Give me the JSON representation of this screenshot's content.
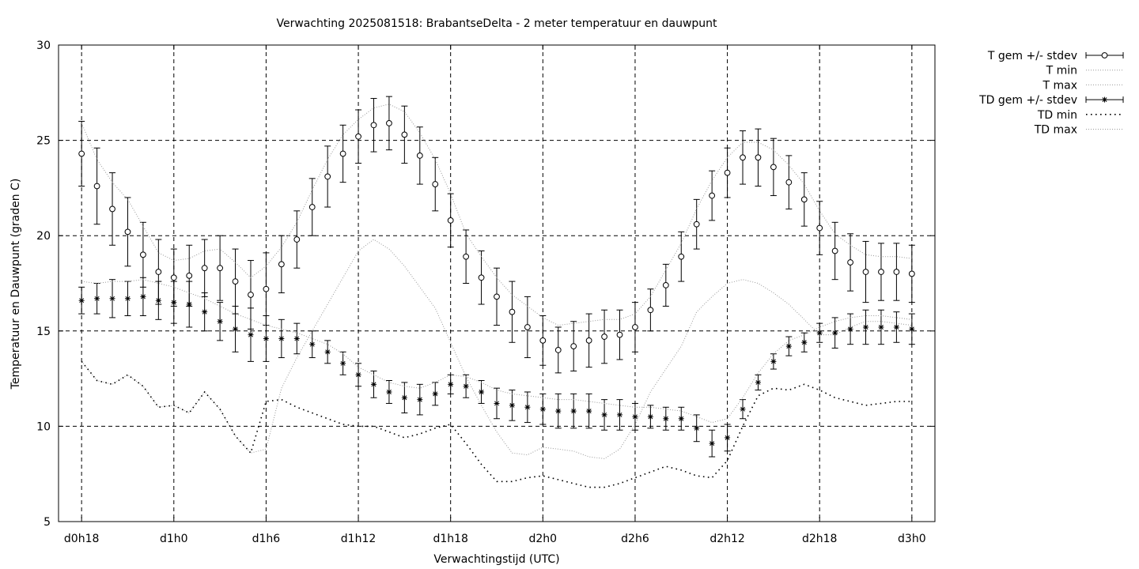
{
  "chart_data": {
    "type": "line",
    "title": "Verwachting 2025081518: BrabantseDelta - 2 meter temperatuur en dauwpunt",
    "xlabel": "Verwachtingstijd (UTC)",
    "ylabel": "Temperatuur en Dauwpunt (graden C)",
    "ylim": [
      5,
      30
    ],
    "yticks": [
      5,
      10,
      15,
      20,
      25,
      30
    ],
    "xlim": [
      -1.5,
      55.5
    ],
    "xticks": [
      {
        "x": 0,
        "label": "d0h18"
      },
      {
        "x": 6,
        "label": "d1h0"
      },
      {
        "x": 12,
        "label": "d1h6"
      },
      {
        "x": 18,
        "label": "d1h12"
      },
      {
        "x": 24,
        "label": "d1h18"
      },
      {
        "x": 30,
        "label": "d2h0"
      },
      {
        "x": 36,
        "label": "d2h6"
      },
      {
        "x": 42,
        "label": "d2h12"
      },
      {
        "x": 48,
        "label": "d2h18"
      },
      {
        "x": 54,
        "label": "d3h0"
      }
    ],
    "grid": true,
    "legend_position": "outside-top-right",
    "series": [
      {
        "name": "T gem +/- stdev",
        "style": "errorbars-circle",
        "x": [
          0,
          1,
          2,
          3,
          4,
          5,
          6,
          7,
          8,
          9,
          10,
          11,
          12,
          13,
          14,
          15,
          16,
          17,
          18,
          19,
          20,
          21,
          22,
          23,
          24,
          25,
          26,
          27,
          28,
          29,
          30,
          31,
          32,
          33,
          34,
          35,
          36,
          37,
          38,
          39,
          40,
          41,
          42,
          43,
          44,
          45,
          46,
          47,
          48,
          49,
          50,
          51,
          52,
          53,
          54
        ],
        "y": [
          24.3,
          22.6,
          21.4,
          20.2,
          19.0,
          18.1,
          17.8,
          17.9,
          18.3,
          18.3,
          17.6,
          16.9,
          17.2,
          18.5,
          19.8,
          21.5,
          23.1,
          24.3,
          25.2,
          25.8,
          25.9,
          25.3,
          24.2,
          22.7,
          20.8,
          18.9,
          17.8,
          16.8,
          16.0,
          15.2,
          14.5,
          14.0,
          14.2,
          14.5,
          14.7,
          14.8,
          15.2,
          16.1,
          17.4,
          18.9,
          20.6,
          22.1,
          23.3,
          24.1,
          24.1,
          23.6,
          22.8,
          21.9,
          20.4,
          19.2,
          18.6,
          18.1,
          18.1,
          18.1,
          18.0
        ],
        "stdev": [
          1.7,
          2.0,
          1.9,
          1.8,
          1.7,
          1.7,
          1.5,
          1.6,
          1.5,
          1.7,
          1.7,
          1.8,
          1.9,
          1.5,
          1.5,
          1.5,
          1.6,
          1.5,
          1.4,
          1.4,
          1.4,
          1.5,
          1.5,
          1.4,
          1.4,
          1.4,
          1.4,
          1.5,
          1.6,
          1.6,
          1.3,
          1.2,
          1.3,
          1.4,
          1.4,
          1.3,
          1.3,
          1.1,
          1.1,
          1.3,
          1.3,
          1.3,
          1.3,
          1.4,
          1.5,
          1.5,
          1.4,
          1.4,
          1.4,
          1.5,
          1.5,
          1.6,
          1.5,
          1.5,
          1.5
        ]
      },
      {
        "name": "T min",
        "style": "dotted-fine",
        "x": [
          0,
          1,
          2,
          3,
          4,
          5,
          6,
          7,
          8,
          9,
          10,
          11,
          12,
          13,
          14,
          15,
          16,
          17,
          18,
          19,
          20,
          21,
          22,
          23,
          24,
          25,
          26,
          27,
          28,
          29,
          30,
          31,
          32,
          33,
          34,
          35,
          36,
          37,
          38,
          39,
          40,
          41,
          42,
          43,
          44,
          45,
          46,
          47,
          48,
          49,
          50,
          51,
          52,
          53,
          54
        ],
        "y": [
          13.4,
          12.4,
          12.2,
          12.7,
          12.1,
          11.0,
          11.1,
          10.7,
          11.8,
          10.9,
          9.5,
          8.6,
          8.8,
          12.0,
          13.6,
          15.0,
          16.4,
          17.8,
          19.2,
          19.8,
          19.3,
          18.4,
          17.3,
          16.2,
          14.4,
          12.6,
          11.1,
          9.7,
          8.6,
          8.5,
          8.9,
          8.8,
          8.7,
          8.4,
          8.3,
          8.8,
          10.1,
          11.8,
          13.0,
          14.2,
          16.0,
          16.8,
          17.5,
          17.7,
          17.5,
          17.0,
          16.4,
          15.6,
          14.8,
          14.8,
          15.2,
          15.5,
          15.5,
          15.4,
          15.3
        ]
      },
      {
        "name": "T max",
        "style": "dotted-fine",
        "x": [
          0,
          1,
          2,
          3,
          4,
          5,
          6,
          7,
          8,
          9,
          10,
          11,
          12,
          13,
          14,
          15,
          16,
          17,
          18,
          19,
          20,
          21,
          22,
          23,
          24,
          25,
          26,
          27,
          28,
          29,
          30,
          31,
          32,
          33,
          34,
          35,
          36,
          37,
          38,
          39,
          40,
          41,
          42,
          43,
          44,
          45,
          46,
          47,
          48,
          49,
          50,
          51,
          52,
          53,
          54
        ],
        "y": [
          25.9,
          24.0,
          22.8,
          21.9,
          20.5,
          19.1,
          18.7,
          18.8,
          19.2,
          19.3,
          18.6,
          17.8,
          18.4,
          19.4,
          20.7,
          22.4,
          24.0,
          25.3,
          26.1,
          26.7,
          26.9,
          26.5,
          25.4,
          24.0,
          22.2,
          20.1,
          18.9,
          17.8,
          16.9,
          16.3,
          15.7,
          15.3,
          15.4,
          15.5,
          15.6,
          15.6,
          15.9,
          16.8,
          18.2,
          19.6,
          21.4,
          22.9,
          24.1,
          24.9,
          24.9,
          24.5,
          23.7,
          22.7,
          21.3,
          20.1,
          19.5,
          19.0,
          18.9,
          18.9,
          18.8
        ]
      },
      {
        "name": "TD gem +/- stdev",
        "style": "errorbars-star",
        "x": [
          0,
          1,
          2,
          3,
          4,
          5,
          6,
          7,
          8,
          9,
          10,
          11,
          12,
          13,
          14,
          15,
          16,
          17,
          18,
          19,
          20,
          21,
          22,
          23,
          24,
          25,
          26,
          27,
          28,
          29,
          30,
          31,
          32,
          33,
          34,
          35,
          36,
          37,
          38,
          39,
          40,
          41,
          42,
          43,
          44,
          45,
          46,
          47,
          48,
          49,
          50,
          51,
          52,
          53,
          54
        ],
        "y": [
          16.6,
          16.7,
          16.7,
          16.7,
          16.8,
          16.6,
          16.5,
          16.4,
          16.0,
          15.5,
          15.1,
          14.8,
          14.6,
          14.6,
          14.6,
          14.3,
          13.9,
          13.3,
          12.7,
          12.2,
          11.8,
          11.5,
          11.4,
          11.7,
          12.2,
          12.1,
          11.8,
          11.2,
          11.1,
          11.0,
          10.9,
          10.8,
          10.8,
          10.8,
          10.6,
          10.6,
          10.5,
          10.5,
          10.4,
          10.4,
          9.9,
          9.1,
          9.4,
          10.9,
          12.3,
          13.4,
          14.2,
          14.4,
          14.9,
          14.9,
          15.1,
          15.2,
          15.2,
          15.2,
          15.1
        ],
        "stdev": [
          0.7,
          0.8,
          1.0,
          0.9,
          1.0,
          1.0,
          1.1,
          1.2,
          1.0,
          1.0,
          1.2,
          1.4,
          1.2,
          1.0,
          0.8,
          0.7,
          0.6,
          0.6,
          0.6,
          0.7,
          0.6,
          0.8,
          0.8,
          0.6,
          0.5,
          0.6,
          0.6,
          0.8,
          0.8,
          0.8,
          0.8,
          0.9,
          0.9,
          0.9,
          0.8,
          0.8,
          0.7,
          0.6,
          0.6,
          0.6,
          0.7,
          0.7,
          0.7,
          0.5,
          0.4,
          0.4,
          0.5,
          0.5,
          0.5,
          0.8,
          0.8,
          0.9,
          0.9,
          0.8,
          0.8
        ]
      },
      {
        "name": "TD min",
        "style": "dotted-coarse",
        "x": [
          0,
          1,
          2,
          3,
          4,
          5,
          6,
          7,
          8,
          9,
          10,
          11,
          12,
          13,
          14,
          15,
          16,
          17,
          18,
          19,
          20,
          21,
          22,
          23,
          24,
          25,
          26,
          27,
          28,
          29,
          30,
          31,
          32,
          33,
          34,
          35,
          36,
          37,
          38,
          39,
          40,
          41,
          42,
          43,
          44,
          45,
          46,
          47,
          48,
          49,
          50,
          51,
          52,
          53,
          54
        ],
        "y": [
          13.4,
          12.4,
          12.2,
          12.7,
          12.1,
          11.0,
          11.1,
          10.7,
          11.8,
          10.9,
          9.5,
          8.6,
          11.3,
          11.4,
          11.0,
          10.7,
          10.4,
          10.1,
          10.0,
          10.0,
          9.7,
          9.4,
          9.6,
          9.9,
          10.1,
          9.1,
          8.0,
          7.1,
          7.1,
          7.3,
          7.4,
          7.2,
          7.0,
          6.8,
          6.8,
          7.0,
          7.3,
          7.6,
          7.9,
          7.7,
          7.4,
          7.3,
          8.2,
          10.0,
          11.6,
          12.0,
          11.9,
          12.2,
          11.9,
          11.5,
          11.3,
          11.1,
          11.2,
          11.3,
          11.3
        ]
      },
      {
        "name": "TD max",
        "style": "dotted-fine",
        "x": [
          0,
          1,
          2,
          3,
          4,
          5,
          6,
          7,
          8,
          9,
          10,
          11,
          12,
          13,
          14,
          15,
          16,
          17,
          18,
          19,
          20,
          21,
          22,
          23,
          24,
          25,
          26,
          27,
          28,
          29,
          30,
          31,
          32,
          33,
          34,
          35,
          36,
          37,
          38,
          39,
          40,
          41,
          42,
          43,
          44,
          45,
          46,
          47,
          48,
          49,
          50,
          51,
          52,
          53,
          54
        ],
        "y": [
          17.6,
          17.5,
          17.6,
          17.6,
          17.7,
          17.5,
          17.3,
          17.0,
          16.7,
          16.3,
          15.9,
          15.6,
          15.3,
          15.1,
          14.9,
          14.6,
          14.3,
          13.8,
          13.1,
          12.7,
          12.3,
          12.1,
          12.0,
          12.3,
          12.7,
          12.6,
          12.3,
          11.9,
          11.7,
          11.6,
          11.5,
          11.4,
          11.4,
          11.3,
          11.2,
          11.1,
          11.0,
          11.0,
          10.9,
          10.8,
          10.5,
          10.2,
          10.4,
          11.5,
          12.8,
          13.8,
          14.5,
          14.8,
          15.2,
          15.5,
          15.7,
          15.8,
          15.8,
          15.7,
          15.6
        ]
      }
    ]
  }
}
